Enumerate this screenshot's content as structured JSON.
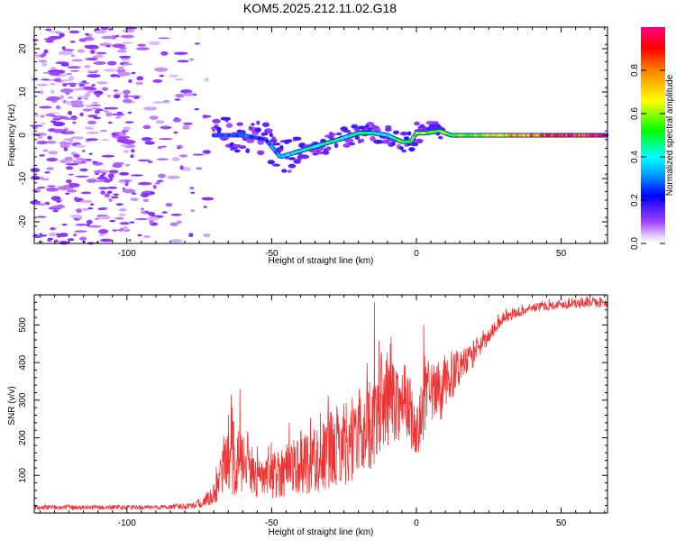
{
  "chart_data": [
    {
      "type": "heatmap",
      "title": "KOM5.2025.212.11.02.G18",
      "xlabel": "Height of straight line (km)",
      "ylabel": "Frequency (Hz)",
      "xlim": [
        -132,
        66
      ],
      "ylim": [
        -25,
        25
      ],
      "xticks": [
        -100,
        -50,
        0,
        50
      ],
      "yticks": [
        -20,
        -10,
        0,
        10,
        20
      ],
      "colorbar": {
        "label": "Normalized spectral amplitude",
        "range": [
          0,
          1
        ],
        "ticks": [
          0.0,
          0.2,
          0.4,
          0.6,
          0.8
        ],
        "colormap": "rainbow (purple-blue-cyan-green-yellow-red-magenta)"
      },
      "ridge": {
        "x": [
          -70,
          -60,
          -52,
          -47,
          -42,
          -37,
          -32,
          -27,
          -20,
          -15,
          -10,
          -5,
          -2,
          0,
          3,
          8,
          12,
          20,
          30,
          40,
          50,
          66
        ],
        "y": [
          0,
          0,
          -1,
          -5,
          -4,
          -3,
          -2,
          -1,
          0.5,
          0.5,
          0,
          -1.5,
          -1.5,
          0.5,
          0.5,
          1,
          0,
          0,
          0,
          0,
          0,
          0
        ],
        "amplitude": [
          0.25,
          0.3,
          0.25,
          0.35,
          0.4,
          0.45,
          0.5,
          0.5,
          0.45,
          0.45,
          0.4,
          0.55,
          0.5,
          0.65,
          0.6,
          0.55,
          0.55,
          0.6,
          0.7,
          0.85,
          0.9,
          0.95
        ]
      },
      "noise_region_xmax": -72
    },
    {
      "type": "line",
      "xlabel": "Height of straight line (km)",
      "ylabel": "SNR (v/v)",
      "xlim": [
        -132,
        66
      ],
      "ylim": [
        0,
        580
      ],
      "xticks": [
        -100,
        -50,
        0,
        50
      ],
      "yticks": [
        100,
        200,
        300,
        400,
        500
      ],
      "color": "#ee3333",
      "envelope": {
        "x": [
          -132,
          -110,
          -90,
          -80,
          -75,
          -70,
          -67,
          -63,
          -60,
          -57,
          -52,
          -47,
          -42,
          -37,
          -32,
          -27,
          -22,
          -17,
          -14,
          -12,
          -8,
          -5,
          -2,
          0,
          3,
          8,
          12,
          17,
          20,
          25,
          30,
          40,
          50,
          66
        ],
        "mean": [
          15,
          15,
          15,
          18,
          25,
          45,
          110,
          150,
          120,
          100,
          90,
          110,
          130,
          140,
          150,
          180,
          200,
          230,
          250,
          280,
          300,
          290,
          270,
          200,
          300,
          320,
          360,
          400,
          420,
          470,
          520,
          545,
          555,
          560
        ],
        "amp": [
          6,
          6,
          6,
          8,
          12,
          25,
          70,
          110,
          80,
          60,
          55,
          70,
          80,
          90,
          100,
          110,
          120,
          120,
          130,
          120,
          110,
          100,
          90,
          80,
          90,
          80,
          60,
          40,
          30,
          20,
          15,
          12,
          12,
          12
        ]
      },
      "peaks": [
        {
          "x": -14.5,
          "y": 560
        },
        {
          "x": -61,
          "y": 330
        },
        {
          "x": -64,
          "y": 315
        },
        {
          "x": 2.5,
          "y": 500
        },
        {
          "x": -9,
          "y": 450
        }
      ]
    }
  ]
}
